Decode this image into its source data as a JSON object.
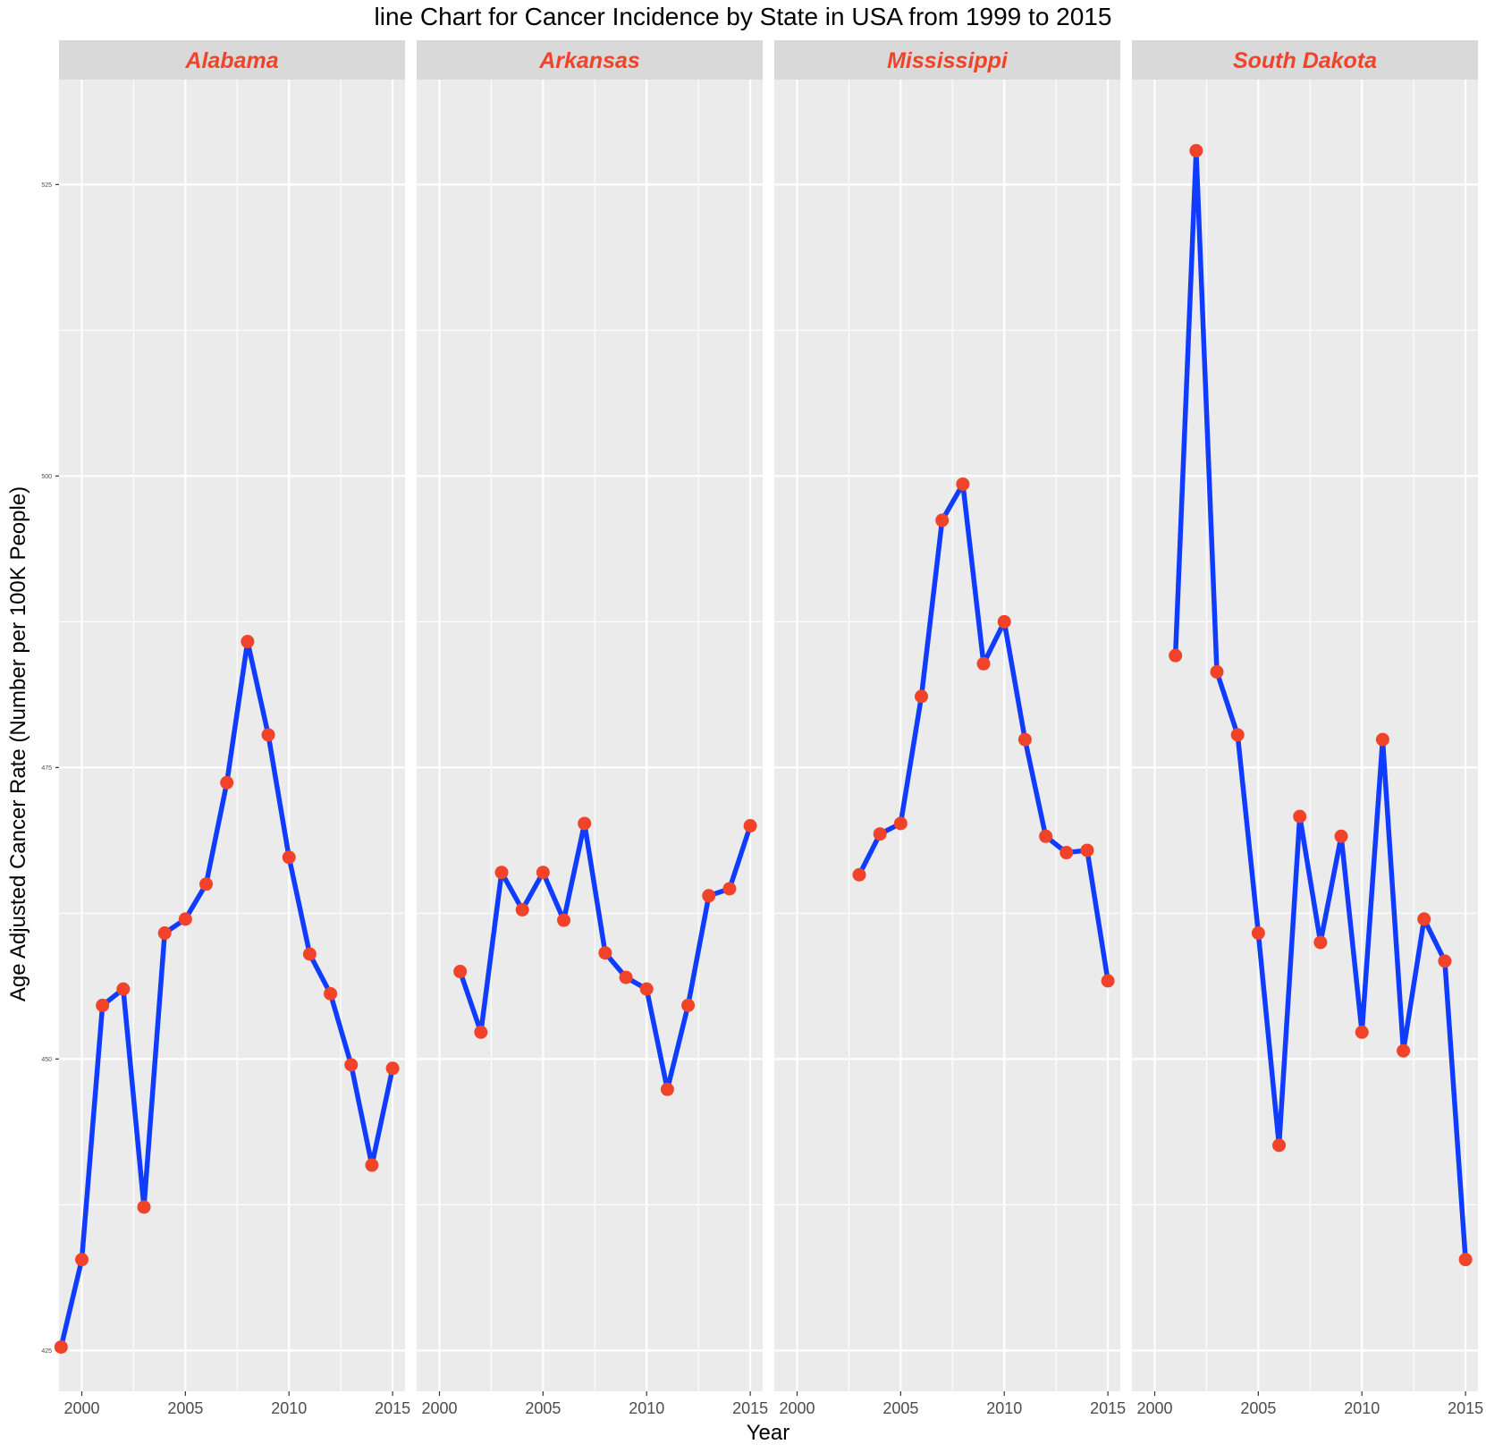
{
  "colors": {
    "line": "#0f3cff",
    "point": "#f0432a",
    "panel_bg": "#ebebeb",
    "strip_bg": "#d9d9d9",
    "grid": "#ffffff",
    "strip_text": "#f0432a"
  },
  "chart_data": {
    "type": "line",
    "title": "line Chart for Cancer Incidence by State in USA from 1999 to 2015",
    "xlabel": "Year",
    "ylabel": "Age Adjusted Cancer Rate (Number per 100K People)",
    "xlim": [
      1998.9,
      2015.6
    ],
    "ylim": [
      421.5,
      534
    ],
    "x_ticks": [
      2000,
      2005,
      2010,
      2015
    ],
    "y_ticks": [
      425,
      450,
      475,
      500,
      525
    ],
    "grid": true,
    "legend": "none",
    "facets": [
      {
        "state": "Alabama",
        "x": [
          1999,
          2000,
          2001,
          2002,
          2003,
          2004,
          2005,
          2006,
          2007,
          2008,
          2009,
          2010,
          2011,
          2012,
          2013,
          2014,
          2015
        ],
        "y": [
          425.3,
          432.8,
          454.6,
          456.0,
          437.3,
          460.8,
          462.0,
          465.0,
          473.7,
          485.8,
          477.8,
          467.3,
          459.0,
          455.6,
          449.5,
          440.9,
          449.2
        ]
      },
      {
        "state": "Arkansas",
        "x": [
          2001,
          2002,
          2003,
          2004,
          2005,
          2006,
          2007,
          2008,
          2009,
          2010,
          2011,
          2012,
          2013,
          2014,
          2015
        ],
        "y": [
          457.5,
          452.3,
          466.0,
          462.8,
          466.0,
          461.9,
          470.2,
          459.1,
          457.0,
          456.0,
          447.4,
          454.6,
          464.0,
          464.6,
          470.0
        ]
      },
      {
        "state": "Mississippi",
        "x": [
          2003,
          2004,
          2005,
          2006,
          2007,
          2008,
          2009,
          2010,
          2011,
          2012,
          2013,
          2014,
          2015
        ],
        "y": [
          465.8,
          469.3,
          470.2,
          481.1,
          496.2,
          499.3,
          483.9,
          487.5,
          477.4,
          469.1,
          467.7,
          467.9,
          456.7
        ]
      },
      {
        "state": "South Dakota",
        "x": [
          2001,
          2002,
          2003,
          2004,
          2005,
          2006,
          2007,
          2008,
          2009,
          2010,
          2011,
          2012,
          2013,
          2014,
          2015
        ],
        "y": [
          484.6,
          527.9,
          483.2,
          477.8,
          460.8,
          442.6,
          470.8,
          460.0,
          469.1,
          452.3,
          477.4,
          450.7,
          462.0,
          458.4,
          432.8
        ]
      }
    ]
  }
}
